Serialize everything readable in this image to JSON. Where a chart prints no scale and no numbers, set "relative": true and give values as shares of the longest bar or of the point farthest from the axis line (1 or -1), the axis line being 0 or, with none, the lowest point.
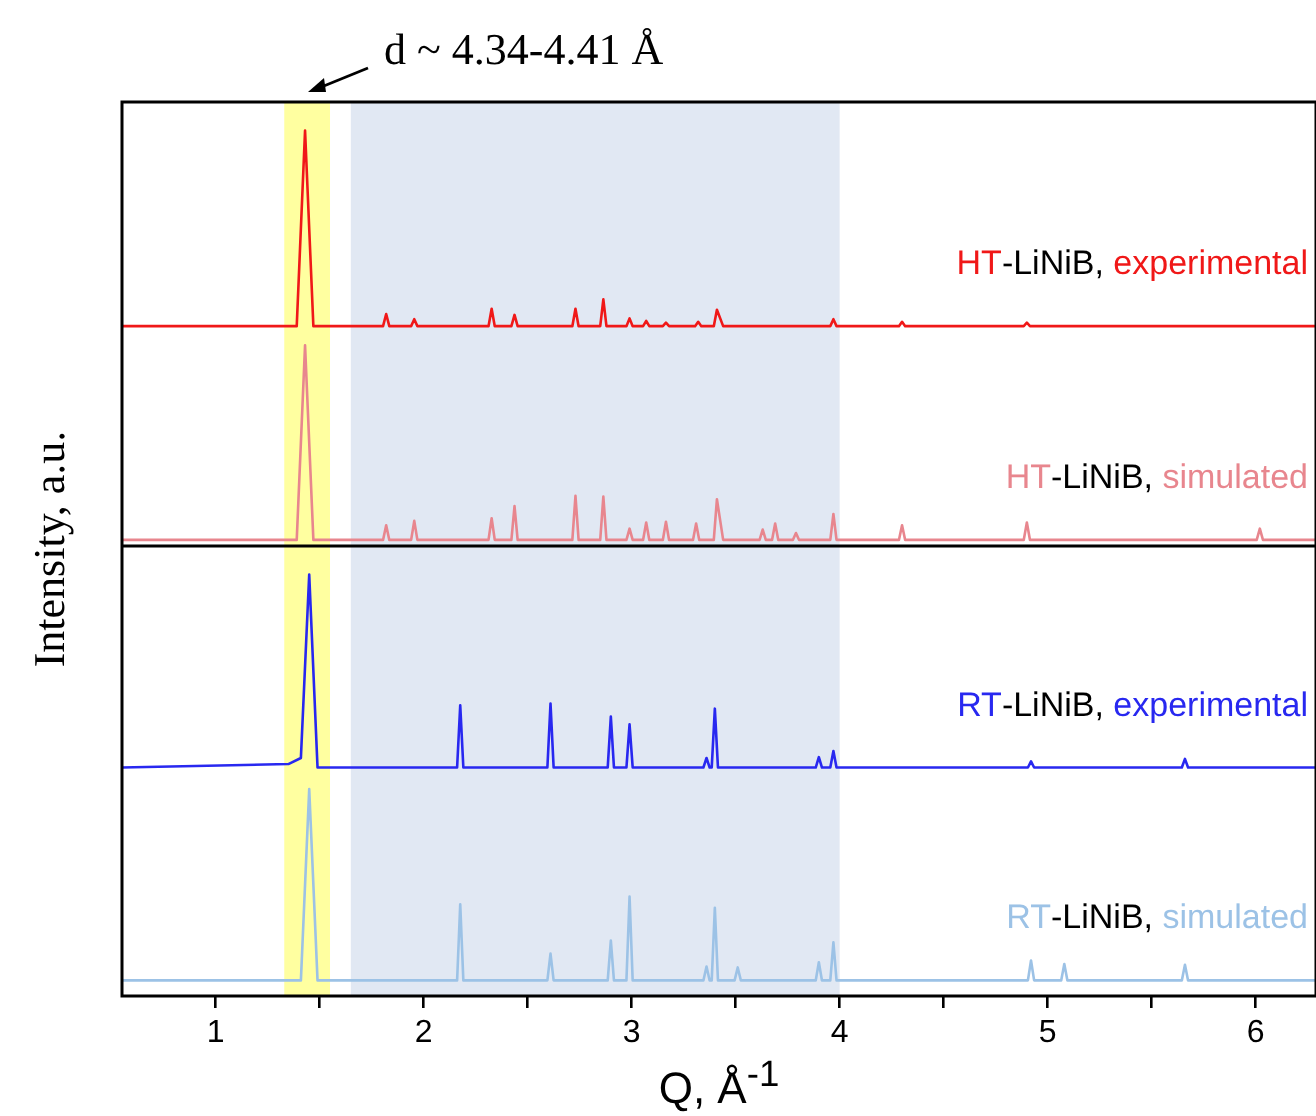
{
  "chart_data": {
    "type": "line",
    "relative": true,
    "xlabel": "Q, Å$^{-1}$",
    "ylabel": "Intensity, a.u.",
    "annotations": [
      "d ~ 4.34-4.41 Å"
    ],
    "legend": false,
    "marker": "none",
    "xlim": [
      0.55,
      6.29
    ],
    "xticks": [
      1,
      {
        "value": 1.5,
        "label": null
      },
      2,
      {
        "value": 2.5,
        "label": null
      },
      3,
      {
        "value": 3.5,
        "label": null
      },
      4,
      {
        "value": 4.5,
        "label": null
      },
      5,
      {
        "value": 5.5,
        "label": null
      },
      6
    ],
    "bands": [
      {
        "axis": "x",
        "from": 1.33,
        "to": 1.55,
        "color": "#ffffa0"
      },
      {
        "axis": "x",
        "from": 1.65,
        "to": 4.0,
        "color": "#e1e8f3"
      }
    ],
    "ref_lines": [
      {
        "axis": "y",
        "value": 0.52,
        "color": "#000000"
      }
    ],
    "series": [
      {
        "name": "HT-LiNiB, experimental",
        "color": "#f01818",
        "x": [
          0.55,
          1.39,
          1.43,
          1.47,
          1.805,
          1.82,
          1.835,
          1.94,
          1.955,
          1.97,
          2.312,
          2.327,
          2.342,
          2.422,
          2.437,
          2.452,
          2.715,
          2.73,
          2.745,
          2.849,
          2.864,
          2.879,
          2.975,
          2.99,
          3.005,
          3.055,
          3.07,
          3.085,
          3.15,
          3.165,
          3.18,
          3.305,
          3.32,
          3.335,
          3.395,
          3.41,
          3.44,
          3.955,
          3.97,
          3.985,
          4.285,
          4.3,
          4.315,
          4.885,
          4.9,
          4.915,
          6.29
        ],
        "values": [
          0.774,
          0.774,
          1.0,
          0.774,
          0.774,
          0.788,
          0.774,
          0.774,
          0.782,
          0.774,
          0.774,
          0.794,
          0.774,
          0.774,
          0.787,
          0.774,
          0.774,
          0.794,
          0.774,
          0.774,
          0.805,
          0.774,
          0.774,
          0.783,
          0.774,
          0.774,
          0.78,
          0.774,
          0.774,
          0.778,
          0.774,
          0.774,
          0.779,
          0.774,
          0.774,
          0.793,
          0.774,
          0.774,
          0.782,
          0.774,
          0.774,
          0.779,
          0.774,
          0.774,
          0.778,
          0.774,
          0.774
        ]
      },
      {
        "name": "HT-LiNiB, simulated",
        "color": "#e8868e",
        "x": [
          0.55,
          1.39,
          1.43,
          1.47,
          1.805,
          1.82,
          1.835,
          1.94,
          1.955,
          1.97,
          2.312,
          2.327,
          2.342,
          2.422,
          2.437,
          2.452,
          2.715,
          2.73,
          2.745,
          2.849,
          2.864,
          2.879,
          2.975,
          2.99,
          3.005,
          3.055,
          3.07,
          3.085,
          3.15,
          3.165,
          3.18,
          3.295,
          3.31,
          3.325,
          3.395,
          3.41,
          3.44,
          3.615,
          3.63,
          3.645,
          3.675,
          3.69,
          3.705,
          3.775,
          3.79,
          3.805,
          3.955,
          3.97,
          3.985,
          4.285,
          4.3,
          4.315,
          4.885,
          4.9,
          4.915,
          6.005,
          6.02,
          6.035,
          6.29
        ],
        "values": [
          0.527,
          0.527,
          0.752,
          0.527,
          0.527,
          0.544,
          0.527,
          0.527,
          0.549,
          0.527,
          0.527,
          0.552,
          0.527,
          0.527,
          0.566,
          0.527,
          0.527,
          0.578,
          0.527,
          0.527,
          0.577,
          0.527,
          0.527,
          0.54,
          0.527,
          0.527,
          0.547,
          0.527,
          0.527,
          0.548,
          0.527,
          0.527,
          0.546,
          0.527,
          0.527,
          0.574,
          0.527,
          0.527,
          0.539,
          0.527,
          0.527,
          0.546,
          0.527,
          0.527,
          0.535,
          0.527,
          0.527,
          0.557,
          0.527,
          0.527,
          0.544,
          0.527,
          0.527,
          0.547,
          0.527,
          0.527,
          0.54,
          0.527,
          0.527
        ]
      },
      {
        "name": "RT-LiNiB, experimental",
        "color": "#2828f0",
        "x": [
          0.55,
          1.35,
          1.41,
          1.45,
          1.49,
          2.161,
          2.176,
          2.191,
          2.595,
          2.61,
          2.625,
          2.885,
          2.9,
          2.915,
          2.975,
          2.99,
          3.005,
          3.345,
          3.36,
          3.375,
          3.385,
          3.4,
          3.415,
          3.885,
          3.9,
          3.915,
          3.955,
          3.97,
          3.985,
          4.905,
          4.92,
          4.935,
          5.645,
          5.66,
          5.675,
          6.29
        ],
        "values": [
          0.264,
          0.268,
          0.275,
          0.487,
          0.264,
          0.264,
          0.336,
          0.264,
          0.264,
          0.338,
          0.264,
          0.264,
          0.323,
          0.264,
          0.264,
          0.314,
          0.264,
          0.264,
          0.275,
          0.264,
          0.264,
          0.332,
          0.264,
          0.264,
          0.276,
          0.264,
          0.264,
          0.283,
          0.264,
          0.264,
          0.271,
          0.264,
          0.264,
          0.274,
          0.264,
          0.264
        ]
      },
      {
        "name": "RT-LiNiB, simulated",
        "color": "#9cc2e6",
        "x": [
          0.55,
          1.41,
          1.45,
          1.49,
          2.161,
          2.176,
          2.191,
          2.595,
          2.61,
          2.625,
          2.885,
          2.9,
          2.915,
          2.975,
          2.99,
          3.005,
          3.345,
          3.36,
          3.375,
          3.385,
          3.4,
          3.415,
          3.495,
          3.51,
          3.525,
          3.885,
          3.9,
          3.915,
          3.955,
          3.97,
          3.985,
          4.905,
          4.92,
          4.935,
          5.065,
          5.08,
          5.095,
          5.645,
          5.66,
          5.675,
          6.29
        ],
        "values": [
          0.018,
          0.018,
          0.239,
          0.018,
          0.018,
          0.106,
          0.018,
          0.018,
          0.049,
          0.018,
          0.018,
          0.064,
          0.018,
          0.018,
          0.115,
          0.018,
          0.018,
          0.034,
          0.018,
          0.018,
          0.102,
          0.018,
          0.018,
          0.033,
          0.018,
          0.018,
          0.039,
          0.018,
          0.018,
          0.062,
          0.018,
          0.018,
          0.041,
          0.018,
          0.018,
          0.037,
          0.018,
          0.018,
          0.036,
          0.018,
          0.018
        ]
      }
    ]
  }
}
